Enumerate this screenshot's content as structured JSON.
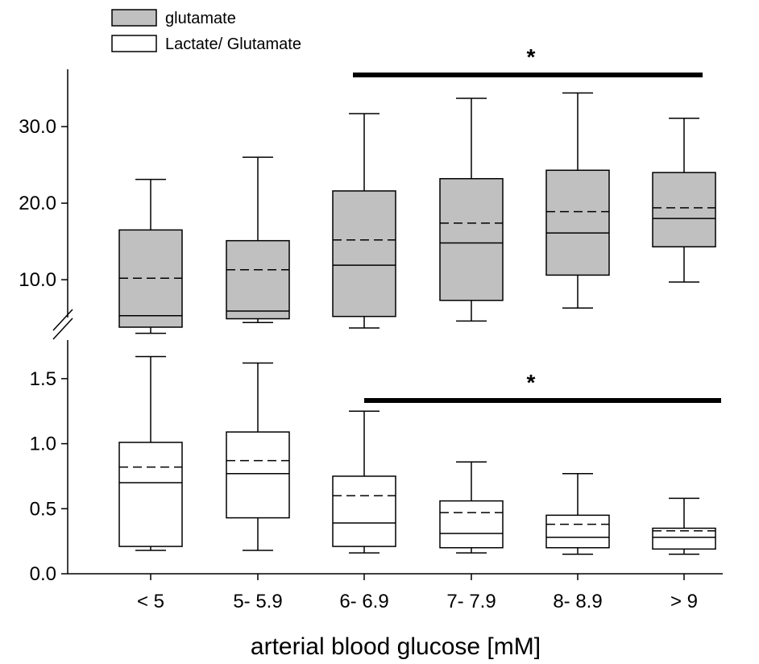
{
  "chart_data": {
    "type": "box",
    "xlabel": "arterial blood glucose [mM]",
    "categories": [
      "< 5",
      "5- 5.9",
      "6- 6.9",
      "7- 7.9",
      "8- 8.9",
      "> 9"
    ],
    "legend": {
      "placement": "top-left",
      "entries": [
        {
          "label": "glutamate",
          "fill": "#c0c0c0"
        },
        {
          "label": "Lactate/ Glutamate",
          "fill": "#ffffff"
        }
      ]
    },
    "panels": [
      {
        "id": "top",
        "series_label": "glutamate",
        "fill": "#c0c0c0",
        "yticks": [
          "10.0",
          "20.0",
          "30.0"
        ],
        "ytick_values": [
          10,
          20,
          30
        ],
        "ylim": [
          3,
          38.5
        ],
        "boxes": [
          {
            "min": 3.0,
            "q1": 3.8,
            "median": 5.3,
            "mean": 10.2,
            "q3": 16.5,
            "max": 23.1
          },
          {
            "min": 4.4,
            "q1": 4.9,
            "median": 5.9,
            "mean": 11.3,
            "q3": 15.1,
            "max": 26.0
          },
          {
            "min": 3.7,
            "q1": 5.2,
            "median": 11.9,
            "mean": 15.2,
            "q3": 21.6,
            "max": 31.7
          },
          {
            "min": 4.6,
            "q1": 7.3,
            "median": 14.8,
            "mean": 17.4,
            "q3": 23.2,
            "max": 33.7
          },
          {
            "min": 6.3,
            "q1": 10.6,
            "median": 16.1,
            "mean": 18.9,
            "q3": 24.3,
            "max": 34.4
          },
          {
            "min": 9.7,
            "q1": 14.3,
            "median": 18.0,
            "mean": 19.4,
            "q3": 24.0,
            "max": 31.1
          }
        ],
        "significance": {
          "from_category": 2,
          "to_category": 5,
          "label": "*"
        }
      },
      {
        "id": "bottom",
        "series_label": "Lactate/ Glutamate",
        "fill": "#ffffff",
        "yticks": [
          "0.0",
          "0.5",
          "1.0",
          "1.5"
        ],
        "ytick_values": [
          0,
          0.5,
          1.0,
          1.5
        ],
        "ylim": [
          0,
          1.78
        ],
        "boxes": [
          {
            "min": 0.18,
            "q1": 0.21,
            "median": 0.7,
            "mean": 0.82,
            "q3": 1.01,
            "max": 1.67
          },
          {
            "min": 0.18,
            "q1": 0.43,
            "median": 0.77,
            "mean": 0.87,
            "q3": 1.09,
            "max": 1.62
          },
          {
            "min": 0.16,
            "q1": 0.21,
            "median": 0.39,
            "mean": 0.6,
            "q3": 0.75,
            "max": 1.25
          },
          {
            "min": 0.16,
            "q1": 0.2,
            "median": 0.31,
            "mean": 0.47,
            "q3": 0.56,
            "max": 0.86
          },
          {
            "min": 0.15,
            "q1": 0.2,
            "median": 0.28,
            "mean": 0.38,
            "q3": 0.45,
            "max": 0.77
          },
          {
            "min": 0.15,
            "q1": 0.19,
            "median": 0.28,
            "mean": 0.33,
            "q3": 0.35,
            "max": 0.58
          }
        ],
        "significance": {
          "from_category": 2,
          "to_category": 5,
          "label": "*"
        }
      }
    ]
  }
}
